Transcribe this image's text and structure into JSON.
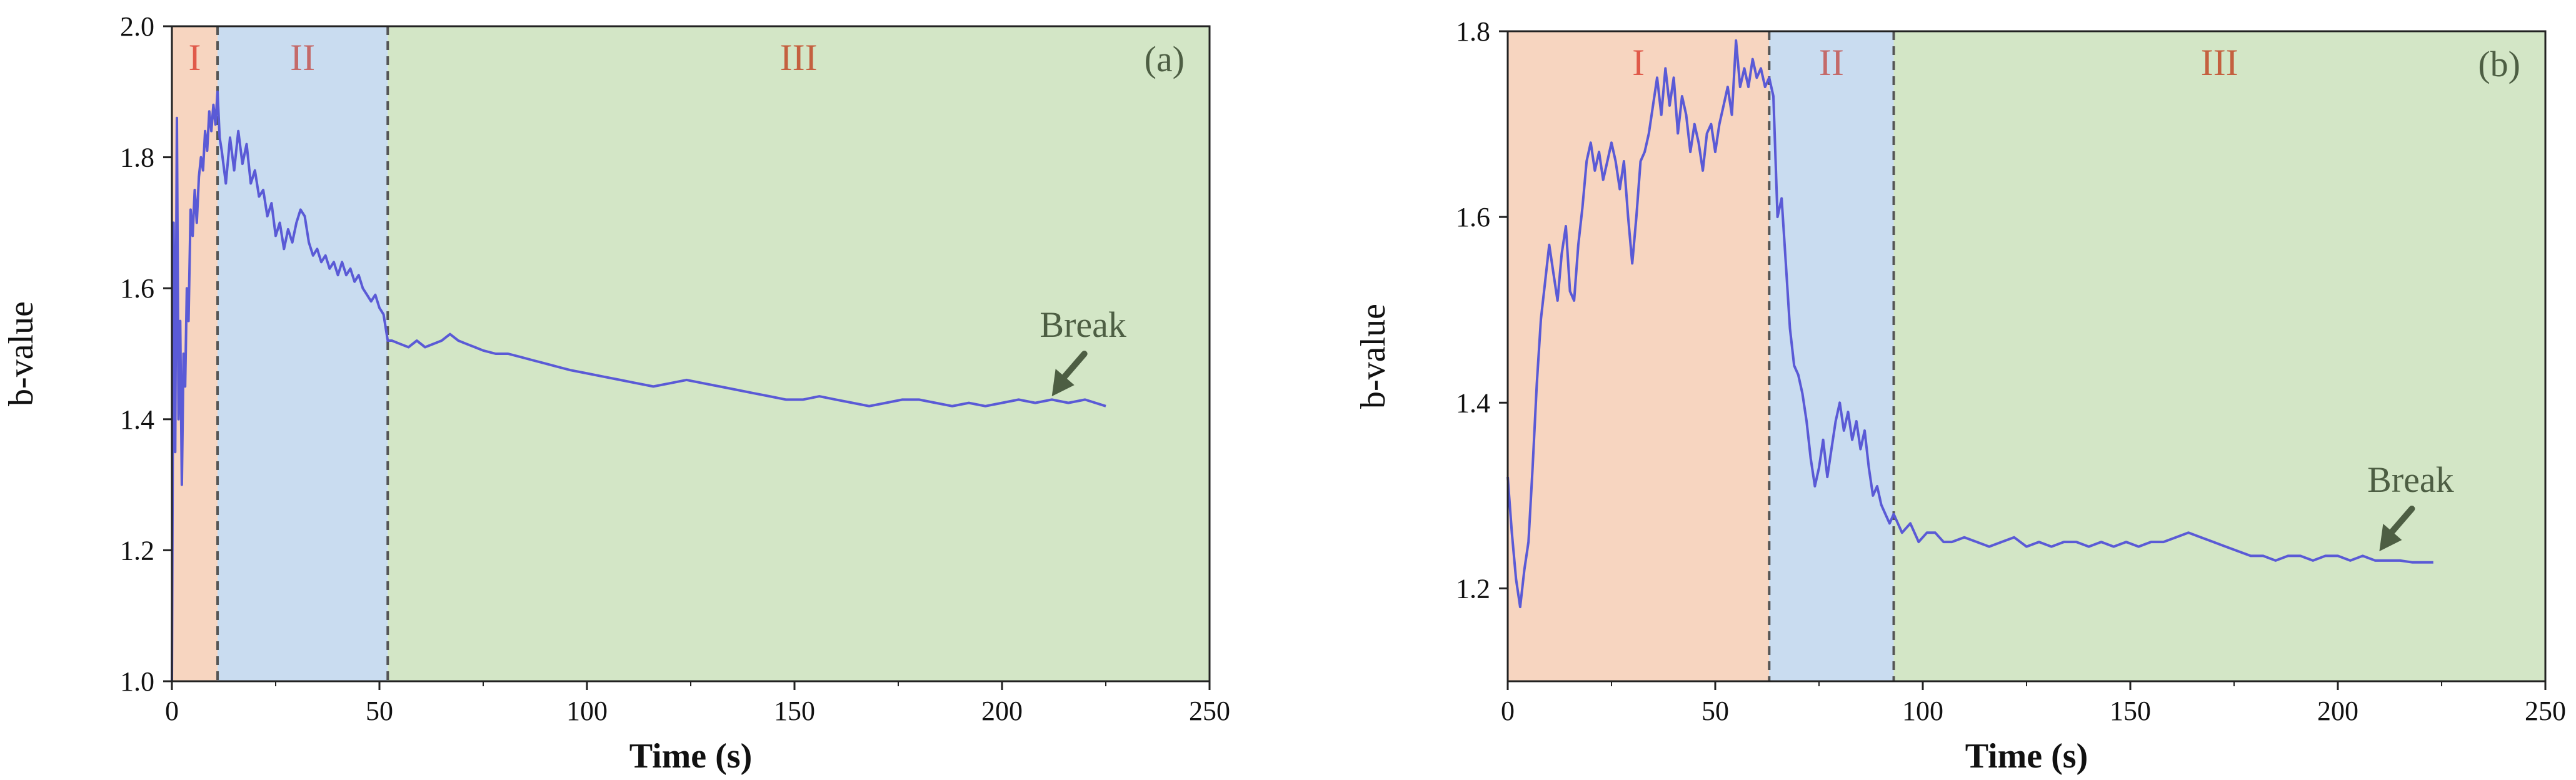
{
  "chart_data": [
    {
      "type": "line",
      "panel_label": "(a)",
      "xlabel": "Time (s)",
      "ylabel": "b-value",
      "xlim": [
        0,
        250
      ],
      "ylim": [
        1.0,
        2.0
      ],
      "xticks": [
        0,
        50,
        100,
        150,
        200,
        250
      ],
      "yticks": [
        1.0,
        1.2,
        1.4,
        1.6,
        1.8,
        2.0
      ],
      "xtick_labels": [
        "0",
        "50",
        "100",
        "150",
        "200",
        "250"
      ],
      "ytick_labels": [
        "1.0",
        "1.2",
        "1.4",
        "1.6",
        "1.8",
        "2.0"
      ],
      "regions": [
        {
          "label": "I",
          "x_start": 0,
          "x_end": 11,
          "color": "#f7d5c0",
          "label_color": "#e05a4a"
        },
        {
          "label": "II",
          "x_start": 11,
          "x_end": 52,
          "color": "#c9dcf0",
          "label_color": "#c46a6a"
        },
        {
          "label": "III",
          "x_start": 52,
          "x_end": 250,
          "color": "#d3e6c6",
          "label_color": "#c4603f"
        }
      ],
      "boundaries": [
        11,
        52
      ],
      "annotation": {
        "text": "Break",
        "x": 212,
        "y": 1.435
      },
      "line_color": "#5a5ad6",
      "series": [
        {
          "x": [
            0,
            0.4,
            0.8,
            1.2,
            1.6,
            2.0,
            2.4,
            2.8,
            3.2,
            3.6,
            4.0,
            4.5,
            5.0,
            5.5,
            6.0,
            6.5,
            7.0,
            7.5,
            8.0,
            8.5,
            9.0,
            9.5,
            10.0,
            10.5,
            11.0,
            11.5,
            12,
            13,
            14,
            15,
            16,
            17,
            18,
            19,
            20,
            21,
            22,
            23,
            24,
            25,
            26,
            27,
            28,
            29,
            30,
            31,
            32,
            33,
            34,
            35,
            36,
            37,
            38,
            39,
            40,
            41,
            42,
            43,
            44,
            45,
            46,
            47,
            48,
            49,
            50,
            51,
            52,
            53,
            55,
            57,
            59,
            61,
            63,
            65,
            67,
            69,
            71,
            73,
            75,
            78,
            81,
            84,
            87,
            90,
            93,
            96,
            100,
            104,
            108,
            112,
            116,
            120,
            124,
            128,
            132,
            136,
            140,
            144,
            148,
            152,
            156,
            160,
            164,
            168,
            172,
            176,
            180,
            184,
            188,
            192,
            196,
            200,
            204,
            208,
            212,
            216,
            220,
            225
          ],
          "y": [
            1.0,
            1.7,
            1.35,
            1.86,
            1.4,
            1.55,
            1.3,
            1.5,
            1.45,
            1.6,
            1.55,
            1.72,
            1.68,
            1.75,
            1.7,
            1.77,
            1.8,
            1.78,
            1.84,
            1.81,
            1.87,
            1.84,
            1.88,
            1.85,
            1.9,
            1.83,
            1.81,
            1.76,
            1.83,
            1.78,
            1.84,
            1.79,
            1.82,
            1.76,
            1.78,
            1.74,
            1.75,
            1.71,
            1.73,
            1.68,
            1.7,
            1.66,
            1.69,
            1.67,
            1.7,
            1.72,
            1.71,
            1.67,
            1.65,
            1.66,
            1.64,
            1.65,
            1.63,
            1.64,
            1.62,
            1.64,
            1.62,
            1.63,
            1.61,
            1.62,
            1.6,
            1.59,
            1.58,
            1.59,
            1.57,
            1.56,
            1.52,
            1.52,
            1.515,
            1.51,
            1.52,
            1.51,
            1.515,
            1.52,
            1.53,
            1.52,
            1.515,
            1.51,
            1.505,
            1.5,
            1.5,
            1.495,
            1.49,
            1.485,
            1.48,
            1.475,
            1.47,
            1.465,
            1.46,
            1.455,
            1.45,
            1.455,
            1.46,
            1.455,
            1.45,
            1.445,
            1.44,
            1.435,
            1.43,
            1.43,
            1.435,
            1.43,
            1.425,
            1.42,
            1.425,
            1.43,
            1.43,
            1.425,
            1.42,
            1.425,
            1.42,
            1.425,
            1.43,
            1.425,
            1.43,
            1.425,
            1.43,
            1.42
          ]
        }
      ]
    },
    {
      "type": "line",
      "panel_label": "(b)",
      "xlabel": "Time (s)",
      "ylabel": "b-value",
      "xlim": [
        0,
        250
      ],
      "ylim": [
        1.1,
        1.8
      ],
      "xticks": [
        0,
        50,
        100,
        150,
        200,
        250
      ],
      "yticks": [
        1.2,
        1.4,
        1.6,
        1.8
      ],
      "xtick_labels": [
        "0",
        "50",
        "100",
        "150",
        "200",
        "250"
      ],
      "ytick_labels": [
        "1.2",
        "1.4",
        "1.6",
        "1.8"
      ],
      "regions": [
        {
          "label": "I",
          "x_start": 0,
          "x_end": 63,
          "color": "#f7d5c0",
          "label_color": "#e05a4a"
        },
        {
          "label": "II",
          "x_start": 63,
          "x_end": 93,
          "color": "#c9dcf0",
          "label_color": "#c46a6a"
        },
        {
          "label": "III",
          "x_start": 93,
          "x_end": 250,
          "color": "#d3e6c6",
          "label_color": "#c4603f"
        }
      ],
      "boundaries": [
        63,
        93
      ],
      "annotation": {
        "text": "Break",
        "x": 210,
        "y": 1.24
      },
      "line_color": "#5a5ad6",
      "series": [
        {
          "x": [
            0,
            1,
            2,
            3,
            4,
            5,
            6,
            7,
            8,
            9,
            10,
            11,
            12,
            13,
            14,
            15,
            16,
            17,
            18,
            19,
            20,
            21,
            22,
            23,
            24,
            25,
            26,
            27,
            28,
            29,
            30,
            31,
            32,
            33,
            34,
            35,
            36,
            37,
            38,
            39,
            40,
            41,
            42,
            43,
            44,
            45,
            46,
            47,
            48,
            49,
            50,
            51,
            52,
            53,
            54,
            55,
            56,
            57,
            58,
            59,
            60,
            61,
            62,
            63,
            64,
            65,
            66,
            67,
            68,
            69,
            70,
            71,
            72,
            73,
            74,
            75,
            76,
            77,
            78,
            79,
            80,
            81,
            82,
            83,
            84,
            85,
            86,
            87,
            88,
            89,
            90,
            91,
            92,
            93,
            95,
            97,
            99,
            101,
            103,
            105,
            107,
            110,
            113,
            116,
            119,
            122,
            125,
            128,
            131,
            134,
            137,
            140,
            143,
            146,
            149,
            152,
            155,
            158,
            161,
            164,
            167,
            170,
            173,
            176,
            179,
            182,
            185,
            188,
            191,
            194,
            197,
            200,
            203,
            206,
            209,
            212,
            215,
            218,
            223
          ],
          "y": [
            1.32,
            1.26,
            1.21,
            1.18,
            1.22,
            1.25,
            1.33,
            1.42,
            1.49,
            1.53,
            1.57,
            1.54,
            1.51,
            1.56,
            1.59,
            1.52,
            1.51,
            1.57,
            1.61,
            1.66,
            1.68,
            1.65,
            1.67,
            1.64,
            1.66,
            1.68,
            1.66,
            1.63,
            1.66,
            1.6,
            1.55,
            1.6,
            1.66,
            1.67,
            1.69,
            1.72,
            1.75,
            1.71,
            1.76,
            1.72,
            1.75,
            1.69,
            1.73,
            1.71,
            1.67,
            1.7,
            1.68,
            1.65,
            1.69,
            1.7,
            1.67,
            1.7,
            1.72,
            1.74,
            1.71,
            1.79,
            1.74,
            1.76,
            1.74,
            1.77,
            1.75,
            1.76,
            1.74,
            1.75,
            1.73,
            1.6,
            1.62,
            1.55,
            1.48,
            1.44,
            1.43,
            1.41,
            1.38,
            1.34,
            1.31,
            1.33,
            1.36,
            1.32,
            1.35,
            1.38,
            1.4,
            1.37,
            1.39,
            1.36,
            1.38,
            1.35,
            1.37,
            1.33,
            1.3,
            1.31,
            1.29,
            1.28,
            1.27,
            1.28,
            1.26,
            1.27,
            1.25,
            1.26,
            1.26,
            1.25,
            1.25,
            1.255,
            1.25,
            1.245,
            1.25,
            1.255,
            1.245,
            1.25,
            1.245,
            1.25,
            1.25,
            1.245,
            1.25,
            1.245,
            1.25,
            1.245,
            1.25,
            1.25,
            1.255,
            1.26,
            1.255,
            1.25,
            1.245,
            1.24,
            1.235,
            1.235,
            1.23,
            1.235,
            1.235,
            1.23,
            1.235,
            1.235,
            1.23,
            1.235,
            1.23,
            1.23,
            1.23,
            1.228,
            1.228
          ]
        }
      ]
    }
  ]
}
